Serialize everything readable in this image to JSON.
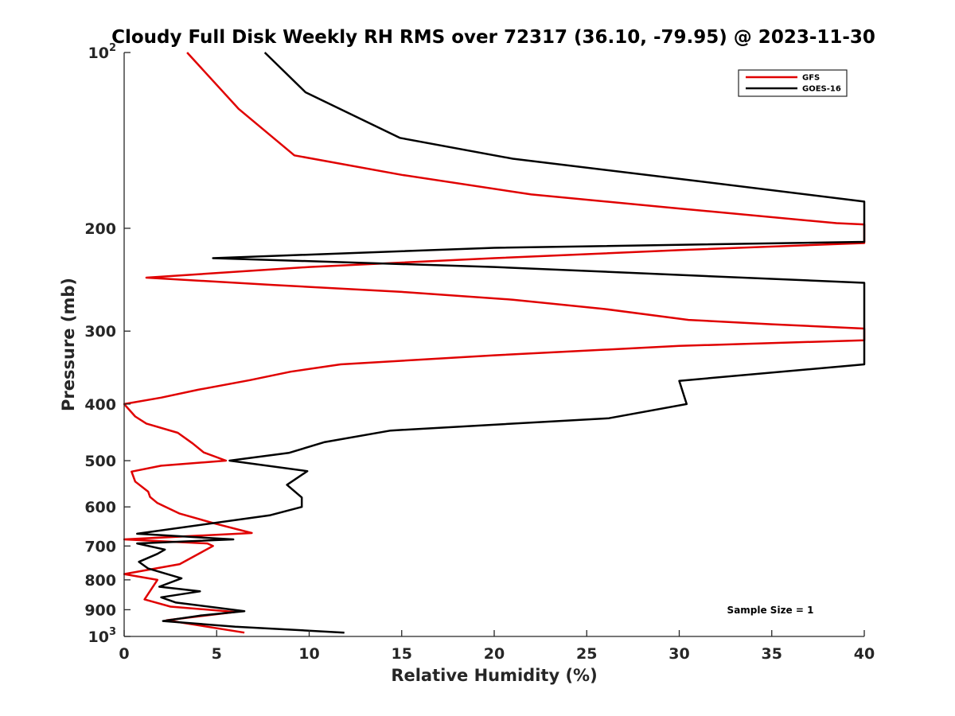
{
  "chart_data": {
    "type": "line",
    "title": "Cloudy Full Disk Weekly RH RMS over 72317 (36.10, -79.95) @ 2023-11-30",
    "xlabel": "Relative Humidity (%)",
    "ylabel": "Pressure (mb)",
    "xlim": [
      0,
      40
    ],
    "ylim": [
      100,
      1000
    ],
    "y_scale": "log",
    "y_reversed": true,
    "x_ticks": [
      "0",
      "5",
      "10",
      "15",
      "20",
      "25",
      "30",
      "35",
      "40"
    ],
    "y_ticks": [
      {
        "value": 100,
        "label": "10",
        "sup": "2"
      },
      {
        "value": 200,
        "label": "200",
        "sup": ""
      },
      {
        "value": 300,
        "label": "300",
        "sup": ""
      },
      {
        "value": 400,
        "label": "400",
        "sup": ""
      },
      {
        "value": 500,
        "label": "500",
        "sup": ""
      },
      {
        "value": 600,
        "label": "600",
        "sup": ""
      },
      {
        "value": 700,
        "label": "700",
        "sup": ""
      },
      {
        "value": 800,
        "label": "800",
        "sup": ""
      },
      {
        "value": 900,
        "label": "900",
        "sup": ""
      },
      {
        "value": 1000,
        "label": "10",
        "sup": "3"
      }
    ],
    "legend_position": "top-right",
    "grid": false,
    "annotation": "Sample Size = 1",
    "series": [
      {
        "name": "GFS",
        "color": "#e00000",
        "points": [
          [
            3.4,
            100
          ],
          [
            6.2,
            125
          ],
          [
            9.2,
            150
          ],
          [
            15.0,
            162
          ],
          [
            22.0,
            175
          ],
          [
            30.0,
            185
          ],
          [
            38.5,
            196
          ],
          [
            40.0,
            197
          ],
          [
            40.0,
            212
          ],
          [
            30.0,
            218
          ],
          [
            20.0,
            225
          ],
          [
            10.0,
            233
          ],
          [
            1.2,
            243
          ],
          [
            8.0,
            250
          ],
          [
            15.0,
            257
          ],
          [
            21.0,
            265
          ],
          [
            26.0,
            275
          ],
          [
            30.5,
            287
          ],
          [
            35.0,
            292
          ],
          [
            40.0,
            297
          ],
          [
            40.0,
            311
          ],
          [
            30.0,
            318
          ],
          [
            20.0,
            330
          ],
          [
            11.7,
            342
          ],
          [
            9.0,
            352
          ],
          [
            6.8,
            364
          ],
          [
            4.0,
            378
          ],
          [
            2.0,
            390
          ],
          [
            0.0,
            400
          ],
          [
            0.6,
            420
          ],
          [
            1.2,
            432
          ],
          [
            2.9,
            448
          ],
          [
            3.7,
            467
          ],
          [
            4.3,
            484
          ],
          [
            5.5,
            500
          ],
          [
            2.0,
            510
          ],
          [
            0.4,
            522
          ],
          [
            0.6,
            543
          ],
          [
            1.3,
            565
          ],
          [
            1.4,
            577
          ],
          [
            1.8,
            591
          ],
          [
            3.0,
            616
          ],
          [
            5.0,
            642
          ],
          [
            6.9,
            665
          ],
          [
            0.0,
            682
          ],
          [
            4.5,
            693
          ],
          [
            4.8,
            700
          ],
          [
            3.0,
            752
          ],
          [
            0.0,
            782
          ],
          [
            1.8,
            800
          ],
          [
            1.1,
            864
          ],
          [
            2.5,
            889
          ],
          [
            6.0,
            908
          ],
          [
            2.3,
            938
          ],
          [
            6.5,
            985
          ]
        ]
      },
      {
        "name": "GOES-16",
        "color": "#000000",
        "points": [
          [
            7.6,
            100
          ],
          [
            9.8,
            117
          ],
          [
            14.9,
            140
          ],
          [
            21.0,
            152
          ],
          [
            31.0,
            166
          ],
          [
            40.0,
            180
          ],
          [
            40.0,
            211
          ],
          [
            20.0,
            216
          ],
          [
            4.8,
            225
          ],
          [
            20.0,
            233
          ],
          [
            40.0,
            248
          ],
          [
            40.0,
            342
          ],
          [
            30.0,
            365
          ],
          [
            30.4,
            400
          ],
          [
            26.2,
            423
          ],
          [
            14.4,
            444
          ],
          [
            10.8,
            465
          ],
          [
            8.9,
            485
          ],
          [
            5.7,
            500
          ],
          [
            9.9,
            521
          ],
          [
            8.8,
            550
          ],
          [
            9.6,
            578
          ],
          [
            9.6,
            600
          ],
          [
            7.9,
            620
          ],
          [
            0.7,
            667
          ],
          [
            5.9,
            682
          ],
          [
            0.7,
            693
          ],
          [
            2.2,
            710
          ],
          [
            1.8,
            722
          ],
          [
            0.8,
            745
          ],
          [
            1.3,
            765
          ],
          [
            3.1,
            795
          ],
          [
            1.9,
            822
          ],
          [
            4.1,
            837
          ],
          [
            2.0,
            857
          ],
          [
            2.8,
            875
          ],
          [
            6.5,
            905
          ],
          [
            4.1,
            921
          ],
          [
            2.1,
            941
          ],
          [
            6.0,
            962
          ],
          [
            11.9,
            985
          ]
        ]
      }
    ]
  }
}
